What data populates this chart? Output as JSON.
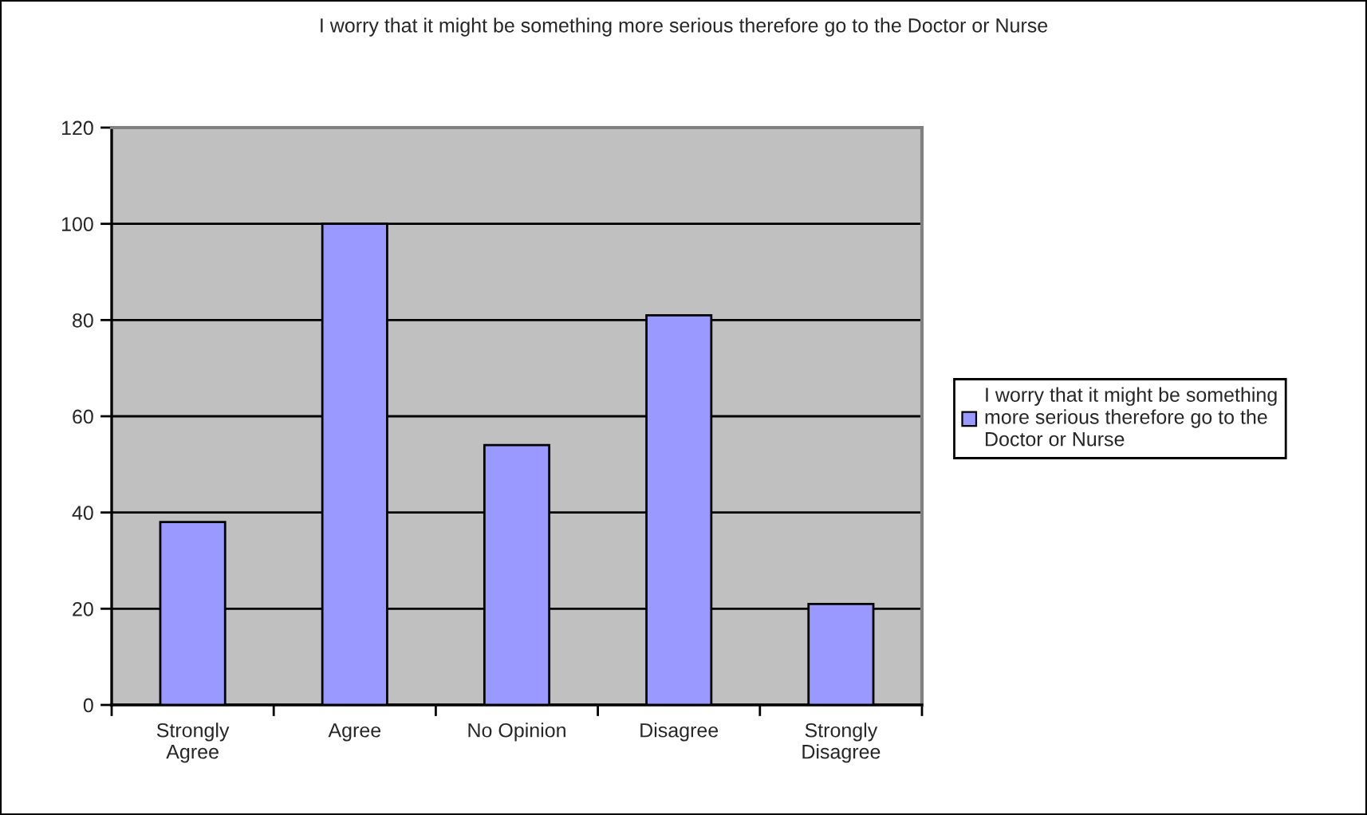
{
  "chart_data": {
    "type": "bar",
    "title": "I worry that it might be something more serious therefore go to the Doctor or Nurse",
    "categories": [
      "Strongly Agree",
      "Agree",
      "No Opinion",
      "Disagree",
      "Strongly Disagree"
    ],
    "series": [
      {
        "name": "I worry that it might be something more serious therefore go to the Doctor or Nurse",
        "color": "#9999ff",
        "values": [
          38,
          100,
          54,
          81,
          21
        ]
      }
    ],
    "ylim": [
      0,
      120
    ],
    "yticks": [
      0,
      20,
      40,
      60,
      80,
      100,
      120
    ],
    "grid": "y",
    "legend": "right"
  }
}
